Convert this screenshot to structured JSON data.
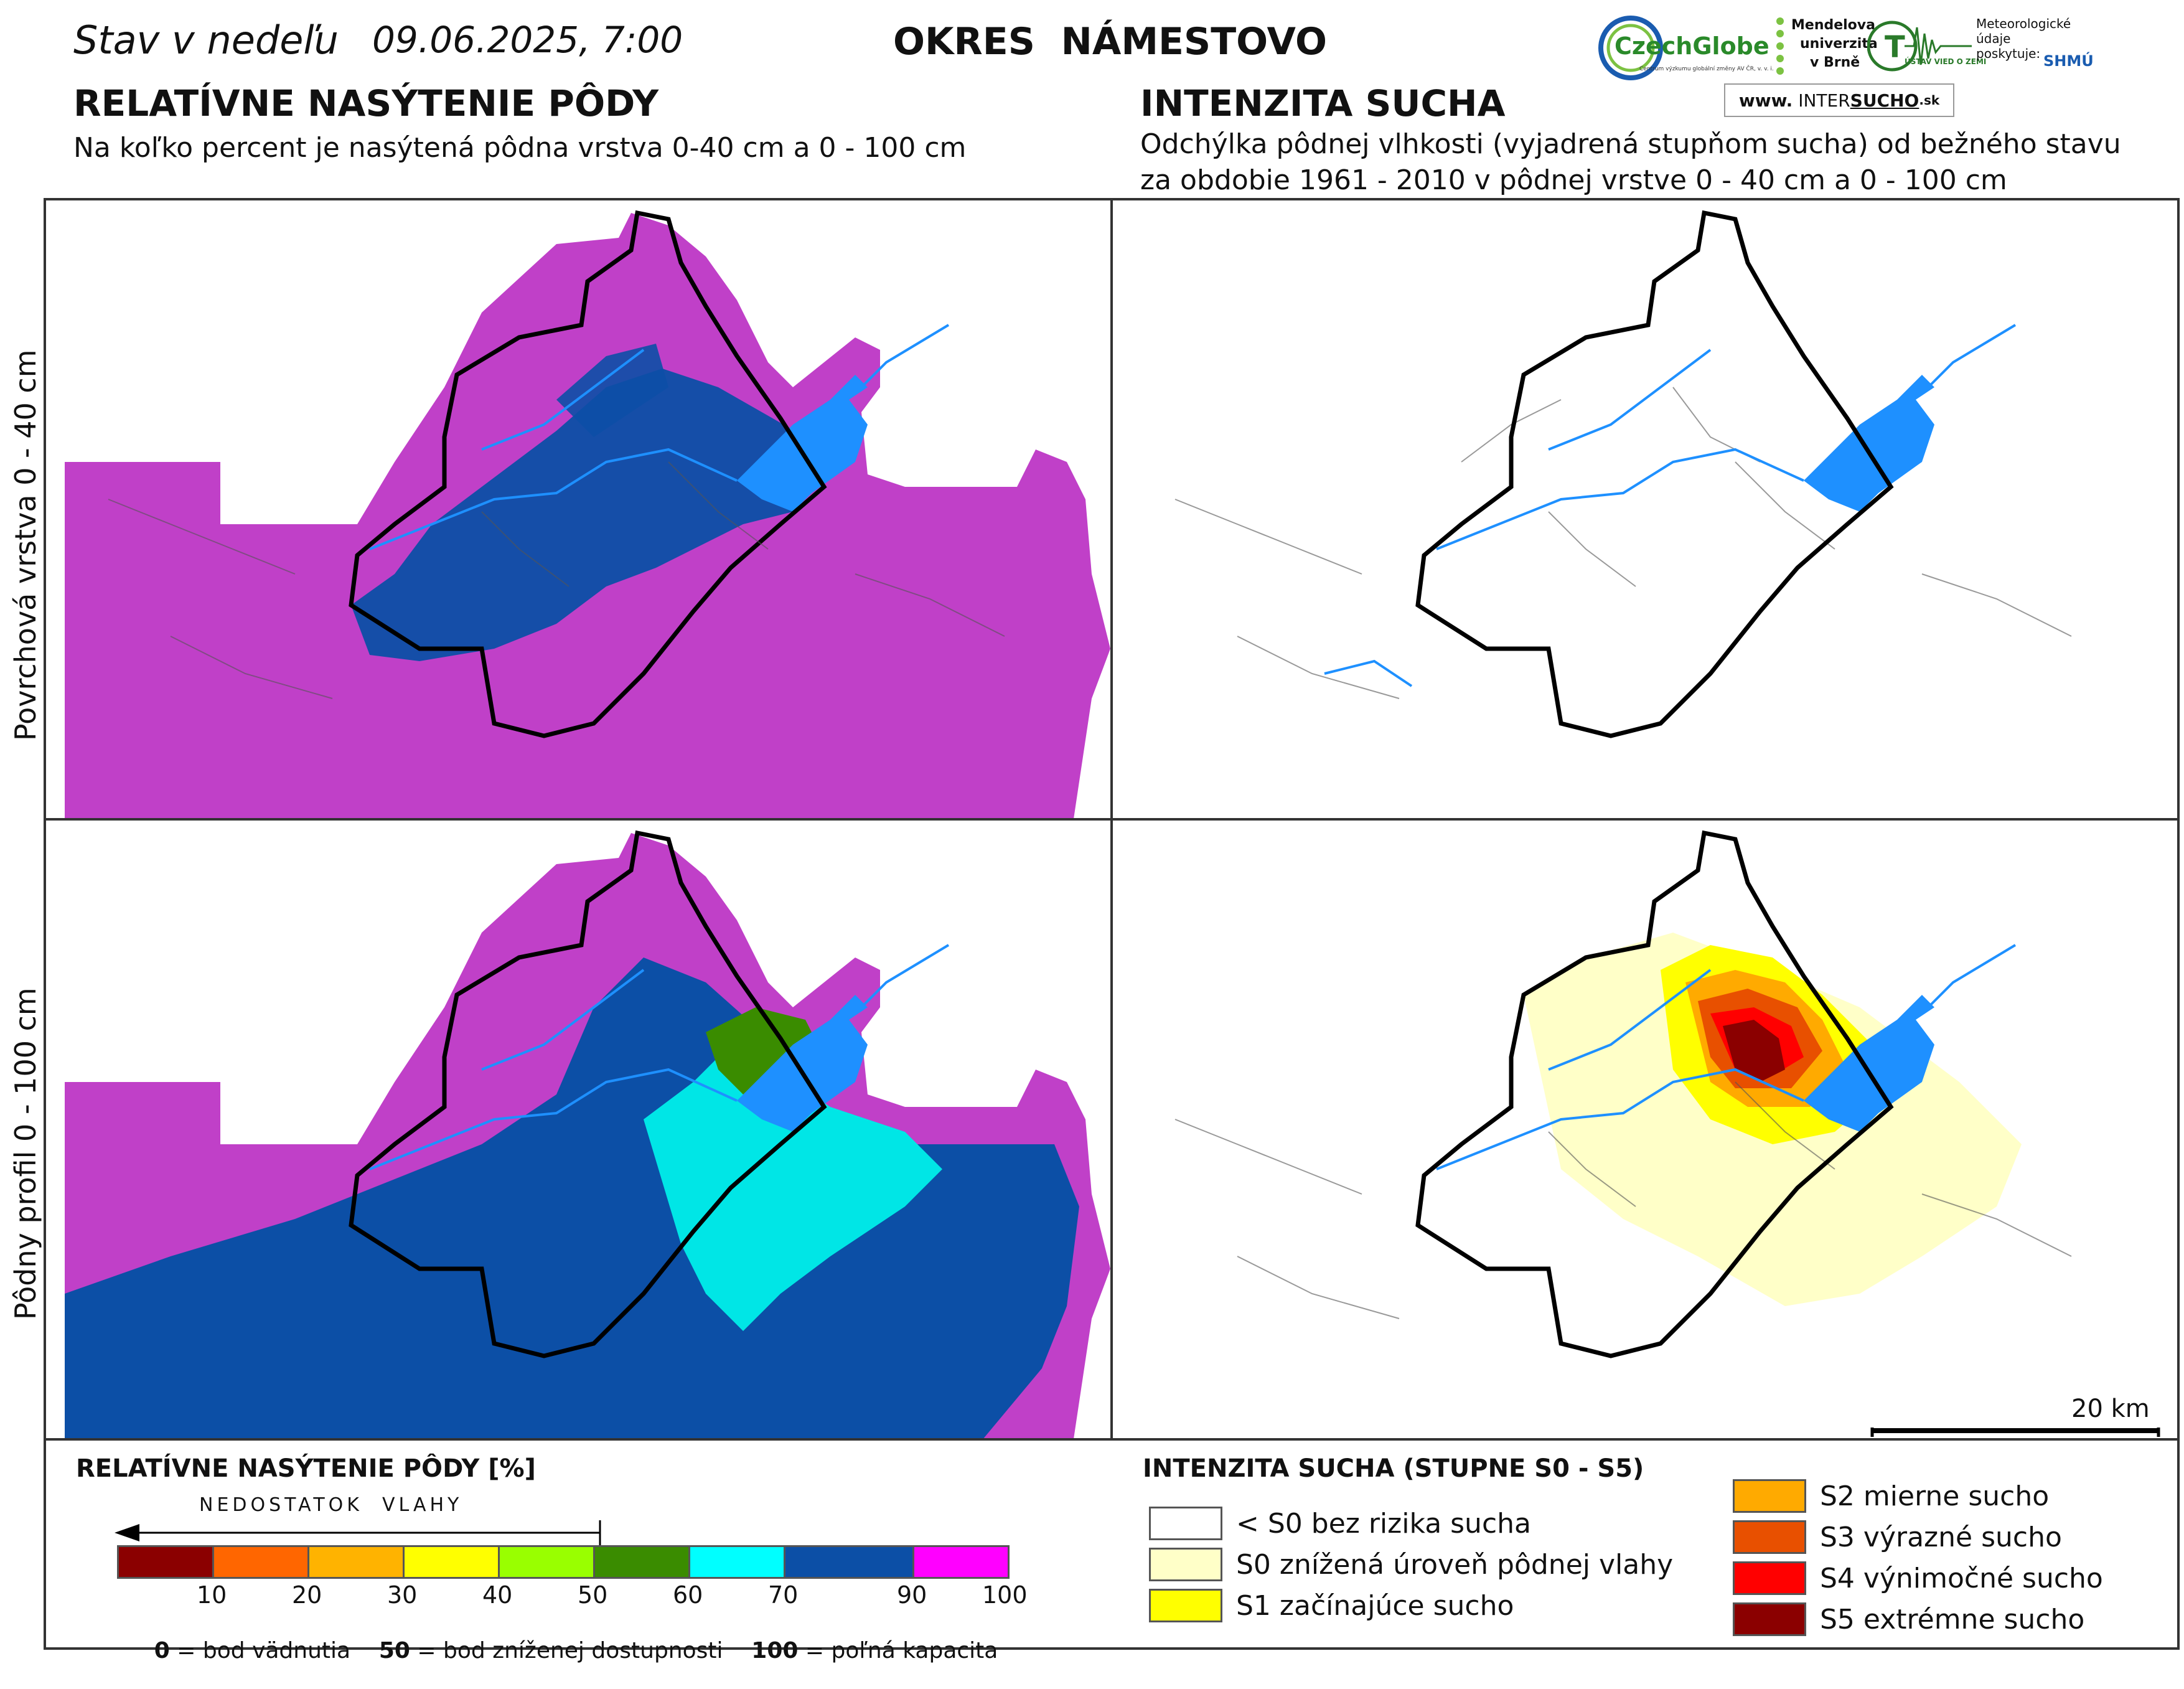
{
  "header": {
    "state_label": "Stav v nedeľu",
    "datetime": "09.06.2025, 7:00",
    "district": "OKRES  NÁMESTOVO"
  },
  "left": {
    "title": "RELATÍVNE NASÝTENIE PÔDY",
    "subtitle": "Na koľko percent je nasýtená pôdna vrstva 0-40 cm a 0 - 100 cm"
  },
  "right": {
    "title": "INTENZITA SUCHA",
    "subtitle_line1": "Odchýlka pôdnej vlhkosti (vyjadrená stupňom sucha) od bežného stavu",
    "subtitle_line2": "za obdobie 1961 - 2010 v pôdnej vrstve 0 - 40 cm a 0 - 100 cm"
  },
  "logos": {
    "czechglobe": "CzechGlobe",
    "czechglobe_sub": "Centrum výzkumu globální změny AV ČR, v. v. i.",
    "mendel_1": "Mendelova",
    "mendel_2": "univerzita",
    "mendel_3": "v Brně",
    "uvoz": "ÚSTAV VIED O ZEMI",
    "meteo_1": "Meteorologické",
    "meteo_2": "údaje",
    "meteo_3": "poskytuje:",
    "shmu": "SHMÚ",
    "intersucho_prefix": "www.",
    "intersucho_a": "INTER",
    "intersucho_b": "SUCHO",
    "intersucho_c": ".sk"
  },
  "row_labels": {
    "top": "Povrchová vrstva 0 - 40 cm",
    "bottom": "Pôdny profil 0 - 100 cm"
  },
  "scale_bar": "20 km",
  "legend_left": {
    "title": "RELATÍVNE NASÝTENIE PÔDY [%]",
    "arrow_label": "NEDOSTATOK  VLAHY",
    "classes": [
      {
        "color": "#8b0000"
      },
      {
        "color": "#ff6600"
      },
      {
        "color": "#ffb300"
      },
      {
        "color": "#ffff00"
      },
      {
        "color": "#99ff00"
      },
      {
        "color": "#3a8c00"
      },
      {
        "color": "#00ffff"
      },
      {
        "color": "#0c4fa6"
      },
      {
        "color": "#ff00ff"
      }
    ],
    "ticks": [
      "10",
      "20",
      "30",
      "40",
      "50",
      "60",
      "70",
      "90",
      "100"
    ],
    "note_0": "0",
    "note_0_text": " = bod vädnutia",
    "note_50": "50",
    "note_50_text": " = bod zníženej dostupnosti",
    "note_100": "100",
    "note_100_text": " = poľná kapacita"
  },
  "legend_right": {
    "title": "INTENZITA SUCHA (STUPNE S0 - S5)",
    "items": [
      {
        "color": "#ffffff",
        "label": "< S0 bez rizika sucha"
      },
      {
        "color": "#ffffc8",
        "label": "S0 znížená úroveň pôdnej vlahy"
      },
      {
        "color": "#ffff00",
        "label": "S1 začínajúce sucho"
      },
      {
        "color": "#ffaa00",
        "label": "S2 mierne sucho"
      },
      {
        "color": "#e85000",
        "label": "S3 výrazné sucho"
      },
      {
        "color": "#ff0000",
        "label": "S4 výnimočné sucho"
      },
      {
        "color": "#8b0000",
        "label": "S5 extrémne sucho"
      }
    ]
  },
  "colors": {
    "saturation_high": "#c040c8",
    "saturation_70_90": "#0c4fa6",
    "saturation_60_70": "#00e6e6",
    "saturation_50_60": "#3a8c00",
    "water": "#1e90ff",
    "border": "#000000"
  }
}
